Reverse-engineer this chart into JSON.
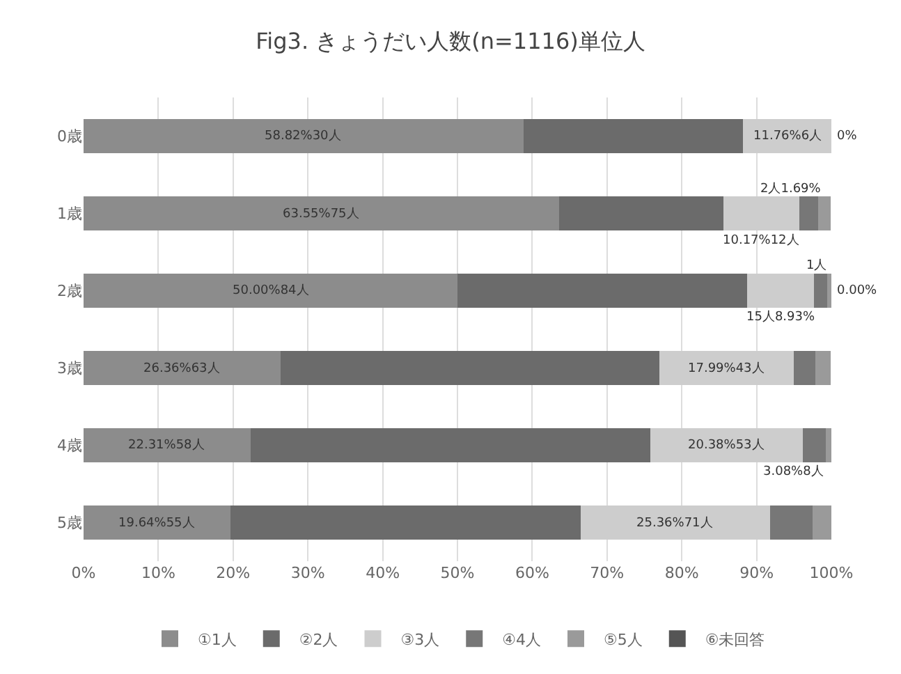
{
  "chart_data": {
    "type": "bar",
    "orientation": "horizontal",
    "stacked": true,
    "title": "Fig3. きょうだい人数(n=1116)単位人",
    "categories": [
      "0歳",
      "1歳",
      "2歳",
      "3歳",
      "4歳",
      "5歳"
    ],
    "series": [
      {
        "name": "①1人",
        "color": "#8c8c8c",
        "values": [
          58.82,
          63.55,
          50.0,
          26.36,
          22.31,
          19.64
        ],
        "value_labels": [
          "58.82%30人",
          "63.55%75人",
          "50.00%84人",
          "26.36%63人",
          "22.31%58人",
          "19.64%55人"
        ]
      },
      {
        "name": "②2人",
        "color": "#6b6b6b",
        "values": [
          29.4,
          22.0,
          38.7,
          50.6,
          53.5,
          46.8
        ],
        "value_labels": [
          null,
          null,
          null,
          null,
          null,
          null
        ]
      },
      {
        "name": "③3人",
        "color": "#cdcdcd",
        "values": [
          11.76,
          10.17,
          8.93,
          17.99,
          20.38,
          25.36
        ],
        "value_labels": [
          "11.76%6人",
          "10.17%12人",
          "15人8.93%",
          "17.99%43人",
          "20.38%53人",
          "25.36%71人"
        ]
      },
      {
        "name": "④4人",
        "color": "#777777",
        "values": [
          0,
          2.5,
          1.8,
          2.9,
          3.08,
          5.7
        ],
        "value_labels": [
          "0%",
          null,
          null,
          null,
          "3.08%8人",
          null
        ]
      },
      {
        "name": "⑤5人",
        "color": "#9a9a9a",
        "values": [
          0,
          1.69,
          0.6,
          2.1,
          0.8,
          2.5
        ],
        "value_labels": [
          null,
          "2人1.69%",
          "1人",
          null,
          null,
          null
        ]
      },
      {
        "name": "⑥未回答",
        "color": "#555555",
        "values": [
          0,
          0,
          0,
          0,
          0,
          0
        ],
        "value_labels": [
          null,
          null,
          "0.00%",
          null,
          null,
          null
        ]
      }
    ],
    "xlim": [
      0,
      100
    ],
    "xticks": [
      {
        "value": 0,
        "label": "0%"
      },
      {
        "value": 10,
        "label": "10%"
      },
      {
        "value": 20,
        "label": "20%"
      },
      {
        "value": 30,
        "label": "30%"
      },
      {
        "value": 40,
        "label": "40%"
      },
      {
        "value": 50,
        "label": "50%"
      },
      {
        "value": 60,
        "label": "60%"
      },
      {
        "value": 70,
        "label": "70%"
      },
      {
        "value": 80,
        "label": "80%"
      },
      {
        "value": 90,
        "label": "90%"
      },
      {
        "value": 100,
        "label": "100%"
      }
    ],
    "grid": "x",
    "legend": "bottom"
  }
}
